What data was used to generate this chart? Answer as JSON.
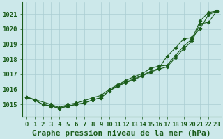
{
  "background_color": "#cce8ea",
  "grid_color": "#aacdd2",
  "line_color": "#1a5c1a",
  "title": "Graphe pression niveau de la mer (hPa)",
  "ylabel_values": [
    1015,
    1016,
    1017,
    1018,
    1019,
    1020,
    1021
  ],
  "xlim": [
    -0.5,
    23.5
  ],
  "ylim": [
    1014.2,
    1021.8
  ],
  "xticks": [
    0,
    1,
    2,
    3,
    4,
    5,
    6,
    7,
    8,
    9,
    10,
    11,
    12,
    13,
    14,
    15,
    16,
    17,
    18,
    19,
    20,
    21,
    22,
    23
  ],
  "line1_x": [
    0,
    1,
    2,
    3,
    4,
    5,
    6,
    7,
    8,
    9,
    10,
    11,
    12,
    13,
    14,
    15,
    16,
    17,
    18,
    19,
    20,
    21,
    22,
    23
  ],
  "line1": [
    1015.5,
    1015.3,
    1015.0,
    1014.9,
    1014.75,
    1014.9,
    1015.0,
    1015.1,
    1015.3,
    1015.45,
    1015.9,
    1016.2,
    1016.45,
    1016.65,
    1016.9,
    1017.15,
    1017.35,
    1017.5,
    1018.1,
    1018.7,
    1019.2,
    1020.35,
    1020.45,
    1021.2
  ],
  "line2_x": [
    0,
    1,
    2,
    3,
    4,
    5,
    6,
    7,
    8,
    9,
    10,
    11,
    12,
    13,
    14,
    15,
    16,
    17,
    18,
    19,
    20,
    21,
    22,
    23
  ],
  "line2": [
    1015.5,
    1015.3,
    1015.0,
    1014.9,
    1014.75,
    1014.9,
    1015.0,
    1015.1,
    1015.3,
    1015.45,
    1015.9,
    1016.25,
    1016.5,
    1016.7,
    1016.95,
    1017.2,
    1017.4,
    1018.2,
    1018.75,
    1019.35,
    1019.45,
    1020.05,
    1020.95,
    1021.2
  ],
  "line3_x": [
    0,
    3,
    4,
    5,
    6,
    7,
    8,
    9,
    10,
    11,
    12,
    13,
    14,
    15,
    16,
    17,
    18,
    19,
    20,
    21,
    22,
    23
  ],
  "line3": [
    1015.5,
    1015.0,
    1014.8,
    1015.0,
    1015.1,
    1015.25,
    1015.45,
    1015.6,
    1016.0,
    1016.3,
    1016.6,
    1016.85,
    1017.05,
    1017.4,
    1017.55,
    1017.6,
    1018.25,
    1018.85,
    1019.35,
    1020.55,
    1021.1,
    1021.2
  ],
  "title_fontsize": 8,
  "tick_fontsize": 6.5
}
